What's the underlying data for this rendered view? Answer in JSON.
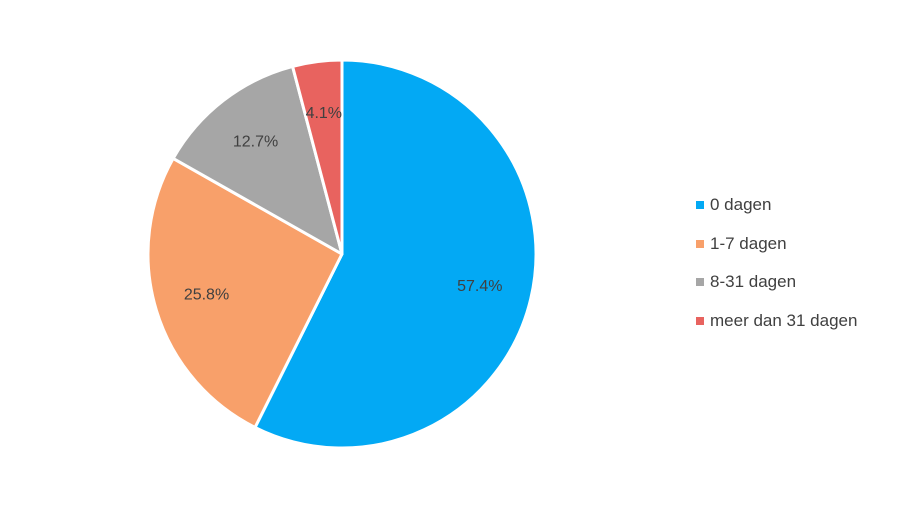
{
  "chart_data": {
    "type": "pie",
    "categories": [
      "0 dagen",
      "1-7 dagen",
      "8-31 dagen",
      "meer dan 31 dagen"
    ],
    "values": [
      57.4,
      25.8,
      12.7,
      4.1
    ],
    "data_labels": [
      "57.4%",
      "25.8%",
      "12.7%",
      "4.1%"
    ],
    "colors": [
      "#03A9F4",
      "#F8A06A",
      "#A6A6A6",
      "#E8635F"
    ],
    "start_angle": "12 o'clock",
    "direction": "clockwise",
    "legend_position": "right",
    "title": ""
  }
}
